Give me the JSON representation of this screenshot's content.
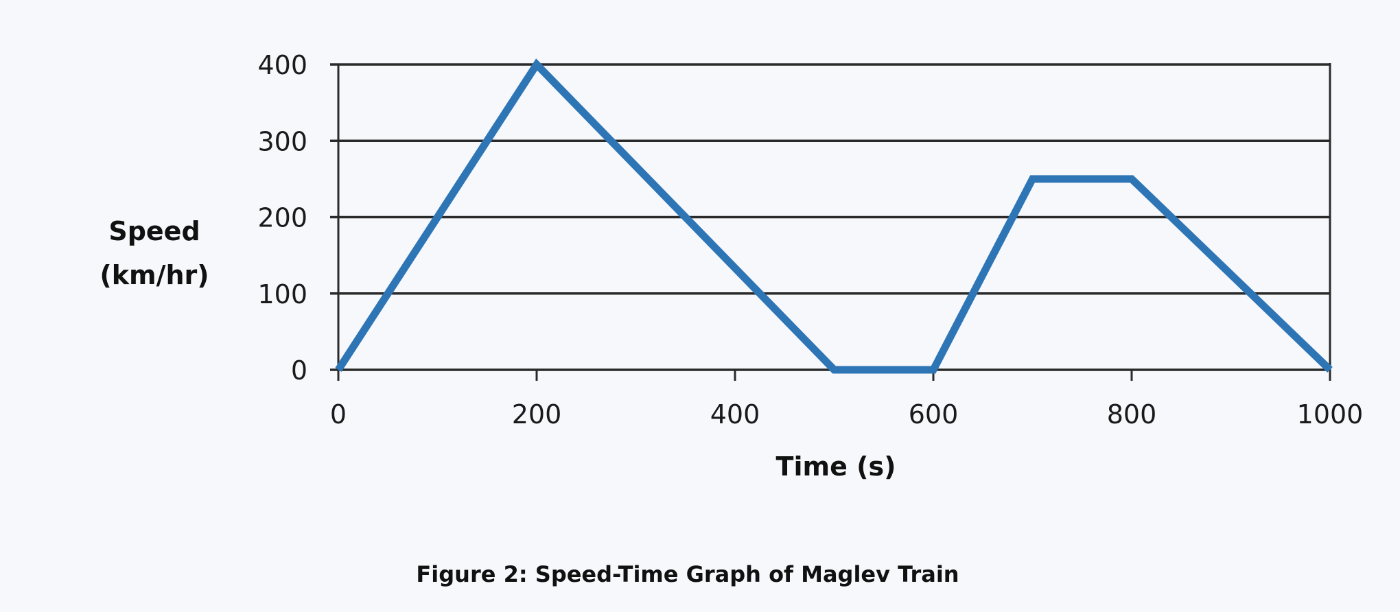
{
  "chart_data": {
    "type": "line",
    "title": "",
    "caption": "Figure 2: Speed-Time Graph of Maglev Train",
    "xlabel": "Time (s)",
    "ylabel_lines": [
      "Speed",
      "(km/hr)"
    ],
    "xlim": [
      0,
      1000
    ],
    "ylim": [
      0,
      400
    ],
    "xticks": [
      0,
      200,
      400,
      600,
      800,
      1000
    ],
    "yticks": [
      0,
      100,
      200,
      300,
      400
    ],
    "grid": "horizontal",
    "legend": "none",
    "line_color": "#2e75b6",
    "series": [
      {
        "x": [
          0,
          200,
          500,
          600,
          700,
          800,
          1000
        ],
        "y": [
          0,
          400,
          0,
          0,
          250,
          250,
          0
        ]
      }
    ]
  }
}
